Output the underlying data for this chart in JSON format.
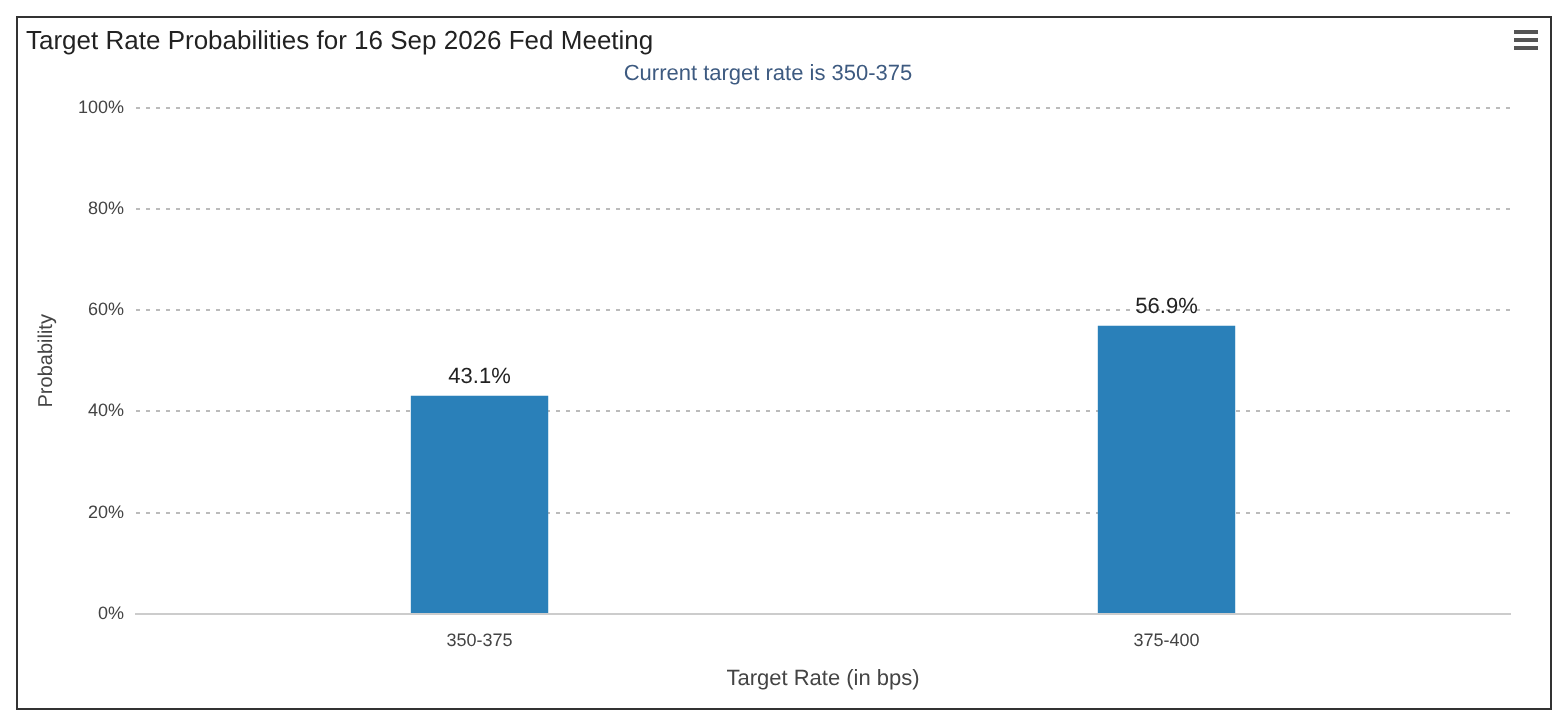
{
  "chart_data": {
    "type": "bar",
    "title": "Target Rate Probabilities for 16 Sep 2026 Fed Meeting",
    "subtitle": "Current target rate is 350-375",
    "xlabel": "Target Rate (in bps)",
    "ylabel": "Probability",
    "categories": [
      "350-375",
      "375-400"
    ],
    "values": [
      43.1,
      56.9
    ],
    "value_labels": [
      "43.1%",
      "56.9%"
    ],
    "color": "#2a80b9",
    "ylim": [
      0,
      100
    ],
    "yticks": [
      {
        "value": 0,
        "label": "0%"
      },
      {
        "value": 20,
        "label": "20%"
      },
      {
        "value": 40,
        "label": "40%"
      },
      {
        "value": 60,
        "label": "60%"
      },
      {
        "value": 80,
        "label": "80%"
      },
      {
        "value": 100,
        "label": "100%"
      }
    ],
    "grid": "y",
    "legend": false
  }
}
